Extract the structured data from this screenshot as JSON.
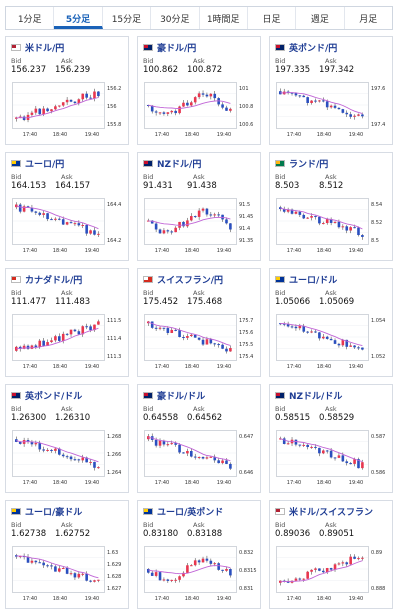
{
  "tabs": [
    "1分足",
    "5分足",
    "15分足",
    "30分足",
    "1時間足",
    "日足",
    "週足",
    "月足"
  ],
  "active_tab": 1,
  "labels": {
    "bid": "Bid",
    "ask": "Ask"
  },
  "x_ticks": [
    "17:40",
    "18:40",
    "19:40"
  ],
  "cards": [
    {
      "pair": "米ドル/円",
      "bid": "156.237",
      "ask": "156.239",
      "flag": [
        "#ffffff",
        "#b22234"
      ],
      "ticks": [
        "156.2",
        "156",
        "155.8"
      ],
      "trend": "up",
      "ma": "down"
    },
    {
      "pair": "豪ドル/円",
      "bid": "100.862",
      "ask": "100.872",
      "flag": [
        "#012169",
        "#c8102e"
      ],
      "ticks": [
        "101",
        "100.8",
        "100.6"
      ],
      "trend": "updown",
      "ma": "flat"
    },
    {
      "pair": "英ポンド/円",
      "bid": "197.335",
      "ask": "197.342",
      "flag": [
        "#012169",
        "#c8102e"
      ],
      "ticks": [
        "197.6",
        "197.4"
      ],
      "trend": "down",
      "ma": "down"
    },
    {
      "pair": "ユーロ/円",
      "bid": "164.153",
      "ask": "164.157",
      "flag": [
        "#003399",
        "#ffcc00"
      ],
      "ticks": [
        "164.4",
        "164.2"
      ],
      "trend": "down",
      "ma": "down"
    },
    {
      "pair": "NZドル/円",
      "bid": "91.431",
      "ask": "91.438",
      "flag": [
        "#012169",
        "#c8102e"
      ],
      "ticks": [
        "91.5",
        "91.45",
        "91.4",
        "91.35"
      ],
      "trend": "updown",
      "ma": "flat"
    },
    {
      "pair": "ランド/円",
      "bid": "8.503",
      "ask": "8.512",
      "flag": [
        "#007a4d",
        "#ffb612"
      ],
      "ticks": [
        "8.54",
        "8.52",
        "8.5"
      ],
      "trend": "down",
      "ma": "down"
    },
    {
      "pair": "カナダドル/円",
      "bid": "111.477",
      "ask": "111.483",
      "flag": [
        "#ffffff",
        "#d52b1e"
      ],
      "ticks": [
        "111.5",
        "111.4",
        "111.3"
      ],
      "trend": "up",
      "ma": "up"
    },
    {
      "pair": "スイスフラン/円",
      "bid": "175.452",
      "ask": "175.468",
      "flag": [
        "#d52b1e",
        "#ffffff"
      ],
      "ticks": [
        "175.7",
        "175.6",
        "175.5",
        "175.4"
      ],
      "trend": "down",
      "ma": "down"
    },
    {
      "pair": "ユーロ/ドル",
      "bid": "1.05066",
      "ask": "1.05069",
      "flag": [
        "#003399",
        "#ffcc00"
      ],
      "ticks": [
        "1.054",
        "1.052"
      ],
      "trend": "down",
      "ma": "down"
    },
    {
      "pair": "英ポンド/ドル",
      "bid": "1.26300",
      "ask": "1.26310",
      "flag": [
        "#012169",
        "#c8102e"
      ],
      "ticks": [
        "1.268",
        "1.266",
        "1.264"
      ],
      "trend": "down",
      "ma": "down"
    },
    {
      "pair": "豪ドル/ドル",
      "bid": "0.64558",
      "ask": "0.64562",
      "flag": [
        "#012169",
        "#c8102e"
      ],
      "ticks": [
        "0.647",
        "0.646"
      ],
      "trend": "down",
      "ma": "down"
    },
    {
      "pair": "NZドル/ドル",
      "bid": "0.58515",
      "ask": "0.58529",
      "flag": [
        "#012169",
        "#c8102e"
      ],
      "ticks": [
        "0.587",
        "0.586"
      ],
      "trend": "down",
      "ma": "down"
    },
    {
      "pair": "ユーロ/豪ドル",
      "bid": "1.62738",
      "ask": "1.62752",
      "flag": [
        "#003399",
        "#ffcc00"
      ],
      "ticks": [
        "1.63",
        "1.629",
        "1.628",
        "1.627"
      ],
      "trend": "down",
      "ma": "down"
    },
    {
      "pair": "ユーロ/英ポンド",
      "bid": "0.83180",
      "ask": "0.83188",
      "flag": [
        "#003399",
        "#ffcc00"
      ],
      "ticks": [
        "0.832",
        "0.8315",
        "0.831"
      ],
      "trend": "updown",
      "ma": "flat"
    },
    {
      "pair": "米ドル/スイスフラン",
      "bid": "0.89036",
      "ask": "0.89051",
      "flag": [
        "#ffffff",
        "#b22234"
      ],
      "ticks": [
        "0.89",
        "0.888"
      ],
      "trend": "up",
      "ma": "up"
    }
  ]
}
